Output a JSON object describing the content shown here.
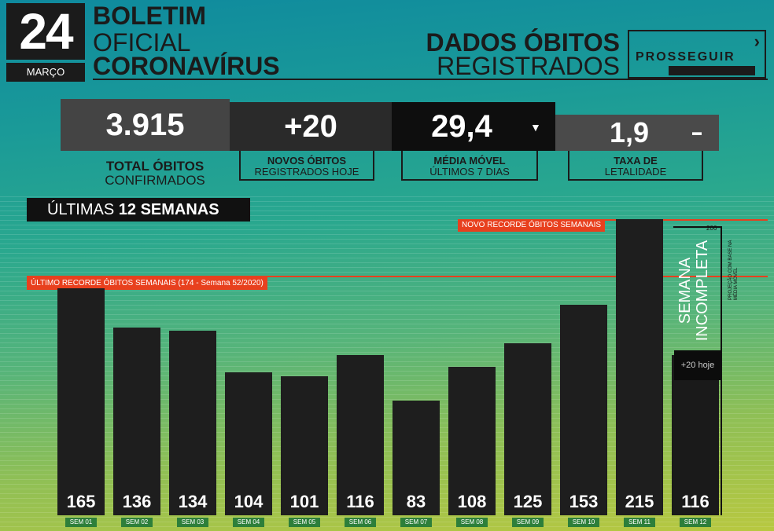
{
  "header": {
    "day": "24",
    "month": "MARÇO",
    "title_line1": "BOLETIM",
    "title_line2": "OFICIAL",
    "title_line3": "CORONAVÍRUS",
    "section_line1": "DADOS ÓBITOS",
    "section_line2": "REGISTRADOS",
    "logo_text": "PROSSEGUIR"
  },
  "stats": {
    "total": {
      "value": "3.915",
      "label_bold": "TOTAL ÓBITOS",
      "label": "CONFIRMADOS"
    },
    "novos": {
      "value": "+20",
      "label_bold": "NOVOS ÓBITOS",
      "label": "REGISTRADOS HOJE"
    },
    "media": {
      "value": "29,4",
      "label_bold": "MÉDIA MÓVEL",
      "label": "ÚLTIMOS 7 DIAS"
    },
    "taxa": {
      "value": "1,9",
      "label_bold": "TAXA DE",
      "label": "LETALIDADE"
    }
  },
  "weeks_label_prefix": "ÚLTIMAS ",
  "weeks_label_bold": "12 SEMANAS",
  "chart_data": {
    "type": "bar",
    "categories": [
      "SEM 01",
      "SEM 02",
      "SEM 03",
      "SEM 04",
      "SEM 05",
      "SEM 06",
      "SEM 07",
      "SEM 08",
      "SEM 09",
      "SEM 10",
      "SEM 11",
      "SEM 12"
    ],
    "values": [
      165,
      136,
      134,
      104,
      101,
      116,
      83,
      108,
      125,
      153,
      215,
      116
    ],
    "data_labels": [
      "165",
      "136",
      "134",
      "104",
      "101",
      "116",
      "83",
      "108",
      "125",
      "153",
      "215",
      "116"
    ],
    "ylim": [
      0,
      220
    ],
    "annotations": {
      "old_record_text": "ÚLTIMO RECORDE ÓBITOS SEMANAIS (174 - Semana 52/2020)",
      "old_record_value": 174,
      "new_record_text": "NOVO RECORDE ÓBITOS SEMANAIS",
      "new_record_value": 215,
      "incomplete_line1": "SEMANA",
      "incomplete_line2": "INCOMPLETA",
      "today_text": "+20 hoje",
      "projection_value": "206",
      "projection_note": "PROJEÇÃO COM BASE NA MÉDIA MÓVEL"
    },
    "colors": {
      "bar": "#1e1e1e",
      "record": "#e8401e",
      "category_tag": "#2d7f3a"
    }
  }
}
